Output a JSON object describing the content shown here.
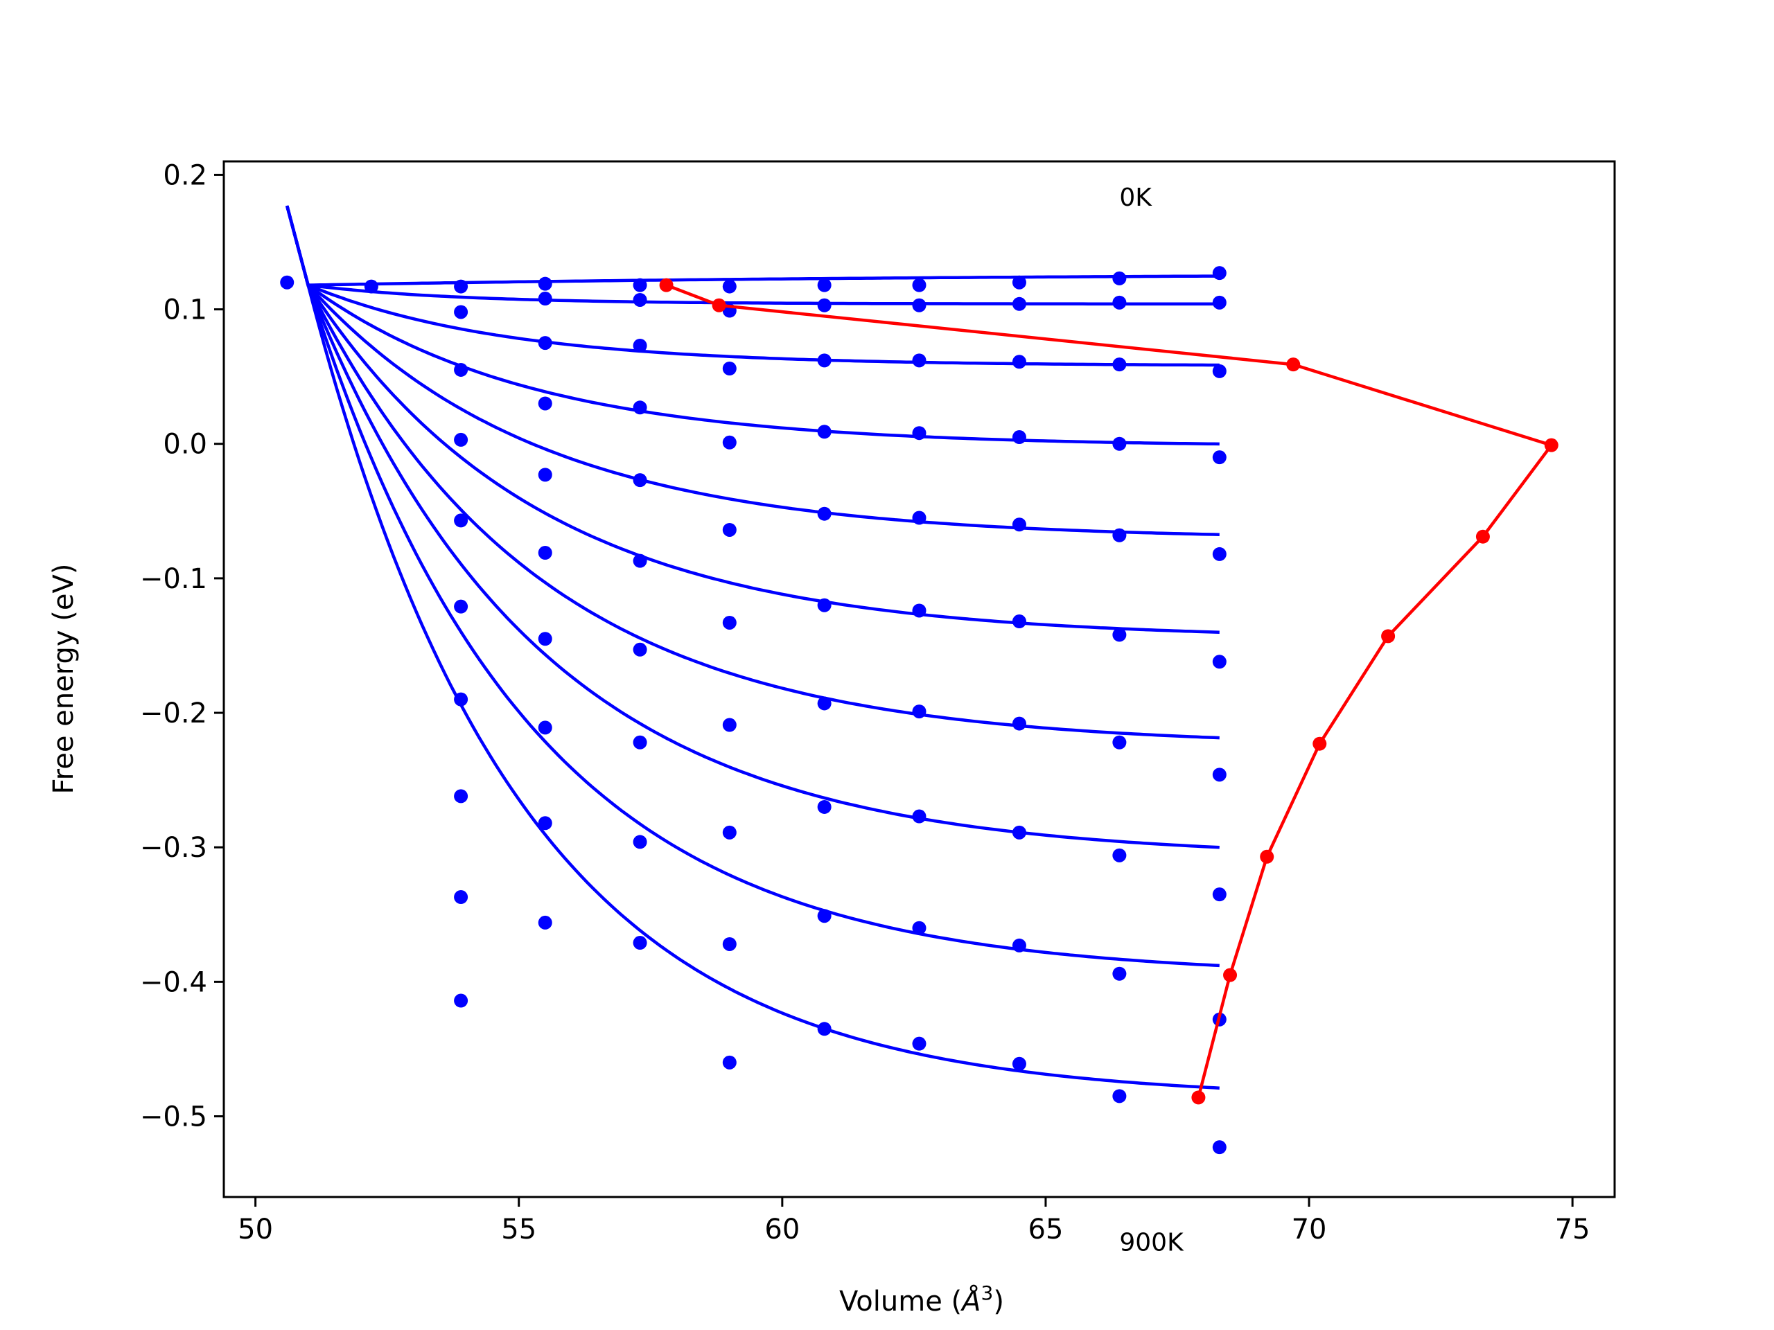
{
  "chart_data": {
    "type": "line",
    "xlabel": "Volume (Å³)",
    "xlabel_main": "Volume (",
    "xlabel_unit": "Å",
    "xlabel_sup": "3",
    "xlabel_close": ")",
    "ylabel": "Free energy (eV)",
    "xlim": [
      49.4,
      75.8
    ],
    "ylim": [
      -0.56,
      0.21
    ],
    "xticks": [
      50,
      55,
      60,
      65,
      70,
      75
    ],
    "xtick_labels": [
      "50",
      "55",
      "60",
      "65",
      "70",
      "75"
    ],
    "yticks": [
      0.2,
      0.1,
      0.0,
      -0.1,
      -0.2,
      -0.3,
      -0.4,
      -0.5
    ],
    "ytick_labels": [
      "0.2",
      "0.1",
      "0.0",
      "−0.1",
      "−0.2",
      "−0.3",
      "−0.4",
      "−0.5"
    ],
    "annotations": [
      {
        "text": "0K",
        "x": 66.4,
        "y": 0.177
      },
      {
        "text": "900K",
        "x": 66.4,
        "y": -0.6
      }
    ],
    "grid": false,
    "legend": "none",
    "colors": {
      "fit": "#0000ff",
      "data": "#0000ff",
      "minimum_path": "#ff0000"
    },
    "x_data": [
      50.6,
      52.2,
      53.9,
      55.5,
      57.3,
      59.0,
      60.8,
      62.6,
      64.5,
      66.4,
      68.3
    ],
    "isotherm_points": [
      [
        0.12,
        0.117,
        0.117,
        0.119,
        0.118,
        0.117,
        0.118,
        0.118,
        0.12,
        0.123,
        0.127
      ],
      [
        null,
        null,
        0.098,
        0.108,
        0.107,
        0.099,
        0.103,
        0.103,
        0.104,
        0.105,
        0.105
      ],
      [
        null,
        null,
        0.055,
        0.075,
        0.073,
        0.056,
        0.062,
        0.062,
        0.061,
        0.059,
        0.054
      ],
      [
        null,
        null,
        0.003,
        0.03,
        0.027,
        0.001,
        0.009,
        0.008,
        0.005,
        0.0,
        -0.01
      ],
      [
        null,
        null,
        -0.057,
        -0.023,
        -0.027,
        -0.064,
        -0.052,
        -0.055,
        -0.06,
        -0.068,
        -0.082
      ],
      [
        null,
        null,
        -0.121,
        -0.081,
        -0.087,
        -0.133,
        -0.12,
        -0.124,
        -0.132,
        -0.142,
        -0.162
      ],
      [
        null,
        null,
        -0.19,
        -0.145,
        -0.153,
        -0.209,
        -0.193,
        -0.199,
        -0.208,
        -0.222,
        -0.246
      ],
      [
        null,
        null,
        -0.262,
        -0.211,
        -0.222,
        -0.289,
        -0.27,
        -0.277,
        -0.289,
        -0.306,
        -0.335
      ],
      [
        null,
        null,
        -0.337,
        -0.282,
        -0.296,
        -0.372,
        -0.351,
        -0.36,
        -0.373,
        -0.394,
        -0.428
      ],
      [
        null,
        null,
        -0.414,
        -0.356,
        -0.371,
        -0.46,
        -0.435,
        -0.446,
        -0.461,
        -0.485,
        -0.523
      ]
    ],
    "fit_curves": [
      {
        "v0": 51.0,
        "f0": 0.118,
        "finf": 0.127,
        "k": 0.08
      },
      {
        "v0": 51.0,
        "f0": 0.118,
        "finf": 0.104,
        "k": 0.35
      },
      {
        "v0": 51.0,
        "f0": 0.118,
        "finf": 0.058,
        "k": 0.27
      },
      {
        "v0": 51.0,
        "f0": 0.118,
        "finf": -0.002,
        "k": 0.24
      },
      {
        "v0": 51.0,
        "f0": 0.118,
        "finf": -0.071,
        "k": 0.23
      },
      {
        "v0": 51.0,
        "f0": 0.118,
        "finf": -0.145,
        "k": 0.23
      },
      {
        "v0": 51.0,
        "f0": 0.118,
        "finf": -0.225,
        "k": 0.23
      },
      {
        "v0": 51.0,
        "f0": 0.118,
        "finf": -0.308,
        "k": 0.23
      },
      {
        "v0": 51.0,
        "f0": 0.118,
        "finf": -0.396,
        "k": 0.24
      },
      {
        "v0": 51.0,
        "f0": 0.118,
        "finf": -0.487,
        "k": 0.25
      }
    ],
    "fit_x_range": [
      50.6,
      68.3
    ],
    "fit_start_y": 0.177,
    "minimum_path": {
      "x": [
        57.8,
        58.8,
        69.7,
        74.6,
        73.3,
        71.5,
        70.2,
        69.2,
        68.5,
        67.9
      ],
      "y": [
        0.118,
        0.103,
        0.059,
        -0.001,
        -0.069,
        -0.143,
        -0.223,
        -0.307,
        -0.395,
        -0.486
      ]
    }
  }
}
